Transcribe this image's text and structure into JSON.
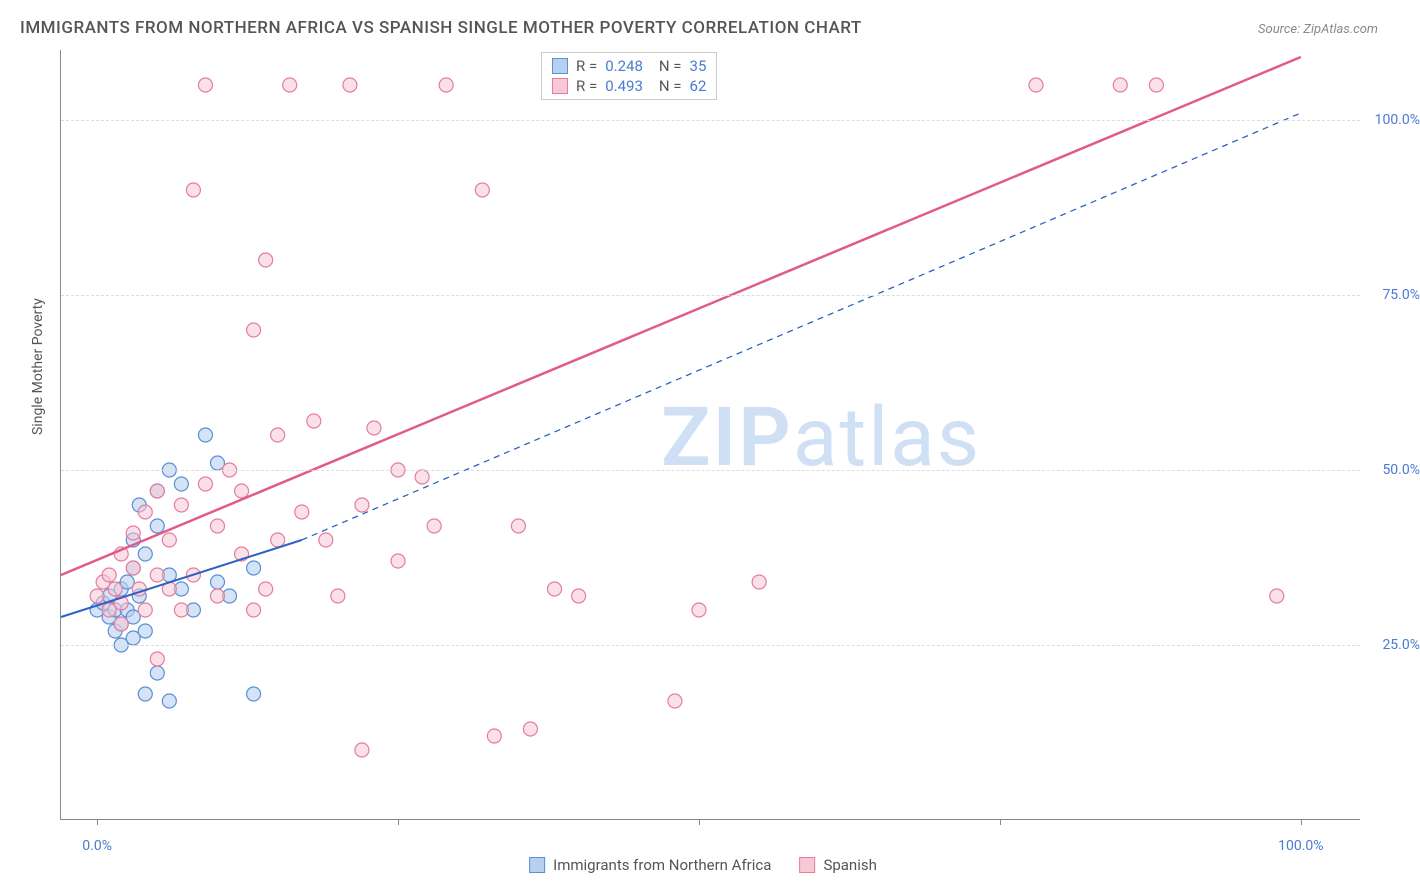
{
  "title": "IMMIGRANTS FROM NORTHERN AFRICA VS SPANISH SINGLE MOTHER POVERTY CORRELATION CHART",
  "source": "Source: ZipAtlas.com",
  "ylabel": "Single Mother Poverty",
  "watermark_zip": "ZIP",
  "watermark_atlas": "atlas",
  "chart": {
    "type": "scatter",
    "xlim": [
      -3,
      105
    ],
    "ylim": [
      0,
      110
    ],
    "xtick_positions": [
      0,
      25,
      50,
      75,
      100
    ],
    "xtick_labels": [
      "0.0%",
      "",
      "",
      "",
      "100.0%"
    ],
    "ytick_positions": [
      25,
      50,
      75,
      100
    ],
    "ytick_labels": [
      "25.0%",
      "50.0%",
      "75.0%",
      "100.0%"
    ],
    "grid_color": "#dddddd",
    "background_color": "#ffffff",
    "axis_color": "#888888",
    "series": [
      {
        "name": "Immigrants from Northern Africa",
        "color_fill": "#b8d0ef",
        "color_stroke": "#5b8fd6",
        "marker_radius": 7,
        "fill_opacity": 0.6,
        "R": "0.248",
        "N": "35",
        "trend": {
          "x1": -3,
          "y1": 29,
          "x2": 17,
          "y2": 40,
          "dash_x2": 100,
          "dash_y2": 101,
          "color": "#2d62c4",
          "width": 2
        },
        "points": [
          [
            0,
            30
          ],
          [
            0.5,
            31
          ],
          [
            1,
            29
          ],
          [
            1,
            32
          ],
          [
            1.5,
            30
          ],
          [
            1.5,
            27
          ],
          [
            2,
            33
          ],
          [
            2,
            28
          ],
          [
            2,
            25
          ],
          [
            2.5,
            34
          ],
          [
            2.5,
            30
          ],
          [
            3,
            40
          ],
          [
            3,
            36
          ],
          [
            3,
            29
          ],
          [
            3,
            26
          ],
          [
            3.5,
            32
          ],
          [
            3.5,
            45
          ],
          [
            4,
            27
          ],
          [
            4,
            38
          ],
          [
            4,
            18
          ],
          [
            5,
            42
          ],
          [
            5,
            21
          ],
          [
            5,
            47
          ],
          [
            6,
            35
          ],
          [
            6,
            50
          ],
          [
            6,
            17
          ],
          [
            7,
            33
          ],
          [
            7,
            48
          ],
          [
            8,
            30
          ],
          [
            9,
            55
          ],
          [
            10,
            34
          ],
          [
            10,
            51
          ],
          [
            11,
            32
          ],
          [
            13,
            18
          ],
          [
            13,
            36
          ]
        ]
      },
      {
        "name": "Spanish",
        "color_fill": "#f6c9d4",
        "color_stroke": "#e77ca0",
        "marker_radius": 7,
        "fill_opacity": 0.55,
        "R": "0.493",
        "N": "62",
        "trend": {
          "x1": -3,
          "y1": 35,
          "x2": 100,
          "y2": 109,
          "color": "#e15a8b",
          "width": 2.5
        },
        "points": [
          [
            0,
            32
          ],
          [
            0.5,
            34
          ],
          [
            1,
            30
          ],
          [
            1,
            35
          ],
          [
            1.5,
            33
          ],
          [
            2,
            31
          ],
          [
            2,
            38
          ],
          [
            2,
            28
          ],
          [
            3,
            36
          ],
          [
            3,
            41
          ],
          [
            3.5,
            33
          ],
          [
            4,
            44
          ],
          [
            4,
            30
          ],
          [
            5,
            47
          ],
          [
            5,
            23
          ],
          [
            5,
            35
          ],
          [
            6,
            40
          ],
          [
            6,
            33
          ],
          [
            7,
            45
          ],
          [
            7,
            30
          ],
          [
            8,
            90
          ],
          [
            8,
            35
          ],
          [
            9,
            48
          ],
          [
            9,
            105
          ],
          [
            10,
            42
          ],
          [
            10,
            32
          ],
          [
            11,
            50
          ],
          [
            12,
            38
          ],
          [
            12,
            47
          ],
          [
            13,
            30
          ],
          [
            13,
            70
          ],
          [
            14,
            33
          ],
          [
            14,
            80
          ],
          [
            15,
            55
          ],
          [
            15,
            40
          ],
          [
            16,
            105
          ],
          [
            17,
            44
          ],
          [
            18,
            57
          ],
          [
            19,
            40
          ],
          [
            20,
            32
          ],
          [
            21,
            105
          ],
          [
            22,
            45
          ],
          [
            22,
            10
          ],
          [
            23,
            56
          ],
          [
            25,
            50
          ],
          [
            25,
            37
          ],
          [
            27,
            49
          ],
          [
            28,
            42
          ],
          [
            29,
            105
          ],
          [
            32,
            90
          ],
          [
            33,
            12
          ],
          [
            35,
            42
          ],
          [
            36,
            13
          ],
          [
            38,
            33
          ],
          [
            40,
            32
          ],
          [
            48,
            17
          ],
          [
            50,
            30
          ],
          [
            55,
            34
          ],
          [
            78,
            105
          ],
          [
            85,
            105
          ],
          [
            88,
            105
          ],
          [
            98,
            32
          ]
        ]
      }
    ]
  },
  "legend_top": {
    "R_label": "R =",
    "N_label": "N ="
  },
  "bottom_legend": {
    "items": [
      {
        "label": "Immigrants from Northern Africa",
        "fill": "#b8d0ef",
        "stroke": "#5b8fd6"
      },
      {
        "label": "Spanish",
        "fill": "#f6c9d4",
        "stroke": "#e77ca0"
      }
    ]
  }
}
